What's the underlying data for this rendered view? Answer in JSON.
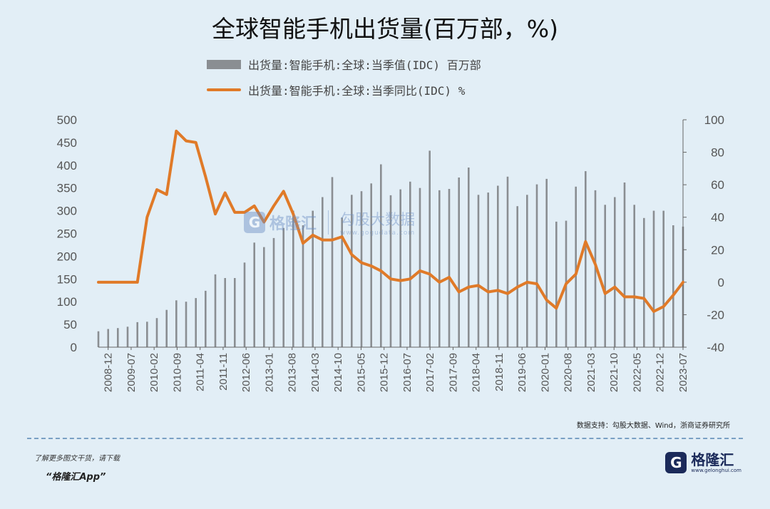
{
  "title": "全球智能手机出货量(百万部，%)",
  "legend": {
    "bar_label": "出货量:智能手机:全球:当季值(IDC) 百万部",
    "line_label": "出货量:智能手机:全球:当季同比(IDC) %"
  },
  "colors": {
    "bar": "#8a8e92",
    "line": "#e07a28",
    "background": "#e2eef6"
  },
  "watermark": {
    "logo_letter": "G",
    "name": "格隆汇",
    "name2": "勾股大数据",
    "url": "www.gogudata.com"
  },
  "source": "数据支持：勾股大数据、Wind，浙商证券研究所",
  "promo": {
    "line1": "了解更多图文干货，请下载",
    "line2": "“格隆汇App”"
  },
  "brand": {
    "logo_letter": "G",
    "name": "格隆汇",
    "url": "www.gelonghui.com"
  },
  "chart_data": {
    "type": "bar",
    "y_left": {
      "range": [
        0,
        500
      ],
      "ticks": [
        0,
        50,
        100,
        150,
        200,
        250,
        300,
        350,
        400,
        450,
        500
      ]
    },
    "y_right": {
      "range": [
        -40,
        100
      ],
      "ticks": [
        -40,
        -20,
        0,
        20,
        40,
        60,
        80,
        100
      ]
    },
    "x_tick_labels": [
      "2008-12",
      "2009-07",
      "2010-02",
      "2010-09",
      "2011-04",
      "2011-11",
      "2012-06",
      "2013-01",
      "2013-08",
      "2014-03",
      "2014-10",
      "2015-05",
      "2015-12",
      "2016-07",
      "2017-02",
      "2017-09",
      "2018-04",
      "2018-11",
      "2019-06",
      "2020-01",
      "2020-08",
      "2021-03",
      "2021-10",
      "2022-05",
      "2022-12",
      "2023-07"
    ],
    "categories": [
      "2008Q3",
      "2008Q4",
      "2009Q1",
      "2009Q2",
      "2009Q3",
      "2009Q4",
      "2010Q1",
      "2010Q2",
      "2010Q3",
      "2010Q4",
      "2011Q1",
      "2011Q2",
      "2011Q3",
      "2011Q4",
      "2012Q1",
      "2012Q2",
      "2012Q3",
      "2012Q4",
      "2013Q1",
      "2013Q2",
      "2013Q3",
      "2013Q4",
      "2014Q1",
      "2014Q2",
      "2014Q3",
      "2014Q4",
      "2015Q1",
      "2015Q2",
      "2015Q3",
      "2015Q4",
      "2016Q1",
      "2016Q2",
      "2016Q3",
      "2016Q4",
      "2017Q1",
      "2017Q2",
      "2017Q3",
      "2017Q4",
      "2018Q1",
      "2018Q2",
      "2018Q3",
      "2018Q4",
      "2019Q1",
      "2019Q2",
      "2019Q3",
      "2019Q4",
      "2020Q1",
      "2020Q2",
      "2020Q3",
      "2020Q4",
      "2021Q1",
      "2021Q2",
      "2021Q3",
      "2021Q4",
      "2022Q1",
      "2022Q2",
      "2022Q3",
      "2022Q4",
      "2023Q1",
      "2023Q2",
      "2023Q3"
    ],
    "series": [
      {
        "name": "出货量:智能手机:全球:当季值(IDC) 百万部",
        "axis": "left",
        "values": [
          35,
          40,
          42,
          45,
          55,
          56,
          64,
          82,
          103,
          100,
          108,
          124,
          160,
          152,
          152,
          186,
          230,
          220,
          240,
          262,
          300,
          268,
          300,
          330,
          374,
          285,
          335,
          343,
          360,
          402,
          334,
          347,
          364,
          350,
          432,
          345,
          348,
          373,
          395,
          335,
          340,
          355,
          375,
          310,
          335,
          358,
          370,
          276,
          278,
          353,
          387,
          345,
          313,
          330,
          362,
          313,
          284,
          300,
          300,
          268,
          265
        ]
      },
      {
        "name": "出货量:智能手机:全球:当季同比(IDC) %",
        "axis": "right",
        "values": [
          0,
          0,
          0,
          0,
          0,
          40,
          57,
          54,
          93,
          87,
          86,
          65,
          42,
          55,
          43,
          43,
          47,
          37,
          47,
          56,
          42,
          24,
          29,
          26,
          26,
          28,
          17,
          12,
          10,
          7,
          2,
          1,
          2,
          7,
          5,
          0,
          3,
          -6,
          -3,
          -2,
          -6,
          -5,
          -7,
          -3,
          0,
          -1,
          -11,
          -16,
          -1,
          5,
          25,
          11,
          -7,
          -3,
          -9,
          -9,
          -10,
          -18,
          -15,
          -8,
          0
        ]
      }
    ]
  }
}
